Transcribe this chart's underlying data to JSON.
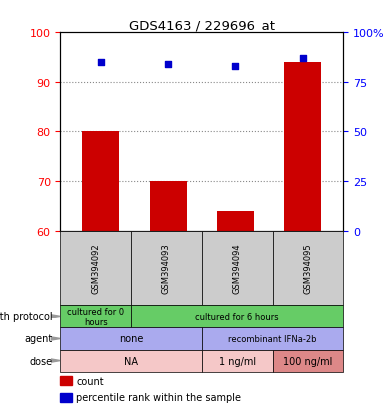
{
  "title": "GDS4163 / 229696_at",
  "samples": [
    "GSM394092",
    "GSM394093",
    "GSM394094",
    "GSM394095"
  ],
  "bar_values": [
    80,
    70,
    64,
    94
  ],
  "bar_baseline": 60,
  "percentile_values": [
    85,
    84,
    83,
    87
  ],
  "left_ylim": [
    60,
    100
  ],
  "right_ylim": [
    0,
    100
  ],
  "left_yticks": [
    60,
    70,
    80,
    90,
    100
  ],
  "right_yticks": [
    0,
    25,
    50,
    75,
    100
  ],
  "right_yticklabels": [
    "0",
    "25",
    "50",
    "75",
    "100%"
  ],
  "bar_color": "#cc0000",
  "dot_color": "#0000cc",
  "grid_lines": [
    70,
    80,
    90
  ],
  "sample_bg_color": "#cccccc",
  "rows": [
    {
      "label": "growth protocol",
      "cells": [
        {
          "text": "cultured for 0\nhours",
          "col": 0,
          "colspan": 1,
          "color": "#66cc66"
        },
        {
          "text": "cultured for 6 hours",
          "col": 1,
          "colspan": 3,
          "color": "#66cc66"
        }
      ]
    },
    {
      "label": "agent",
      "cells": [
        {
          "text": "none",
          "col": 0,
          "colspan": 2,
          "color": "#aaaaee"
        },
        {
          "text": "recombinant IFNa-2b",
          "col": 2,
          "colspan": 2,
          "color": "#aaaaee"
        }
      ]
    },
    {
      "label": "dose",
      "cells": [
        {
          "text": "NA",
          "col": 0,
          "colspan": 2,
          "color": "#f5c8c8"
        },
        {
          "text": "1 ng/ml",
          "col": 2,
          "colspan": 1,
          "color": "#f5c8c8"
        },
        {
          "text": "100 ng/ml",
          "col": 3,
          "colspan": 1,
          "color": "#dd8888"
        }
      ]
    }
  ],
  "legend_items": [
    {
      "color": "#cc0000",
      "label": "count"
    },
    {
      "color": "#0000cc",
      "label": "percentile rank within the sample"
    }
  ]
}
